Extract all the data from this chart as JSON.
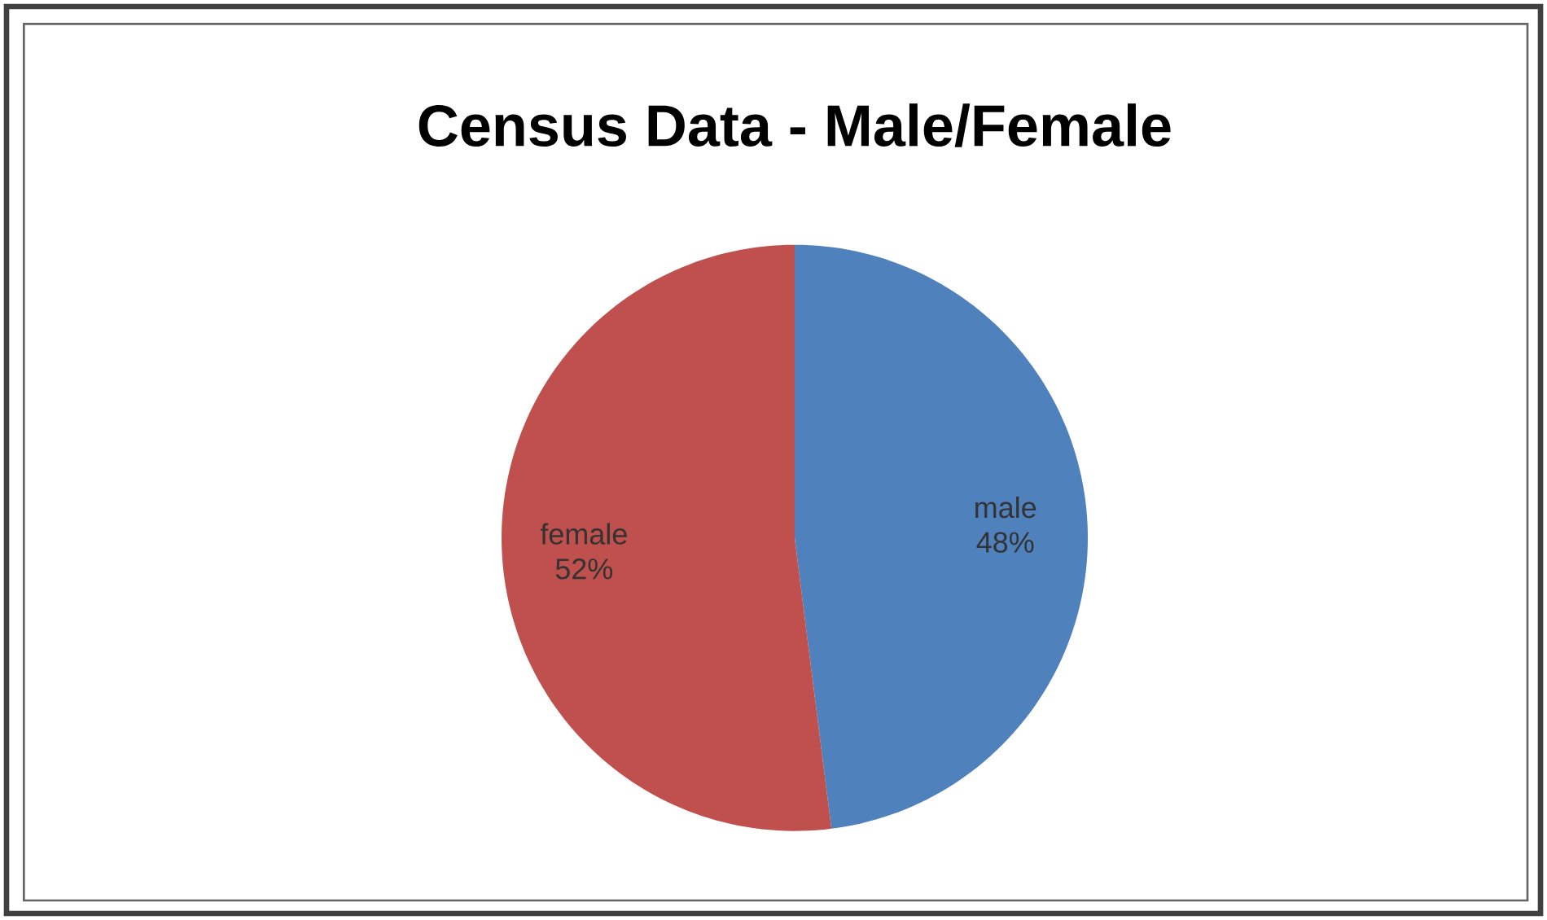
{
  "chart_data": {
    "type": "pie",
    "title": "Census Data - Male/Female",
    "categories": [
      "male",
      "female"
    ],
    "values": [
      48,
      52
    ],
    "value_labels": [
      "48%",
      "52%"
    ],
    "colors": [
      "#4f81bd",
      "#c0504d"
    ]
  }
}
